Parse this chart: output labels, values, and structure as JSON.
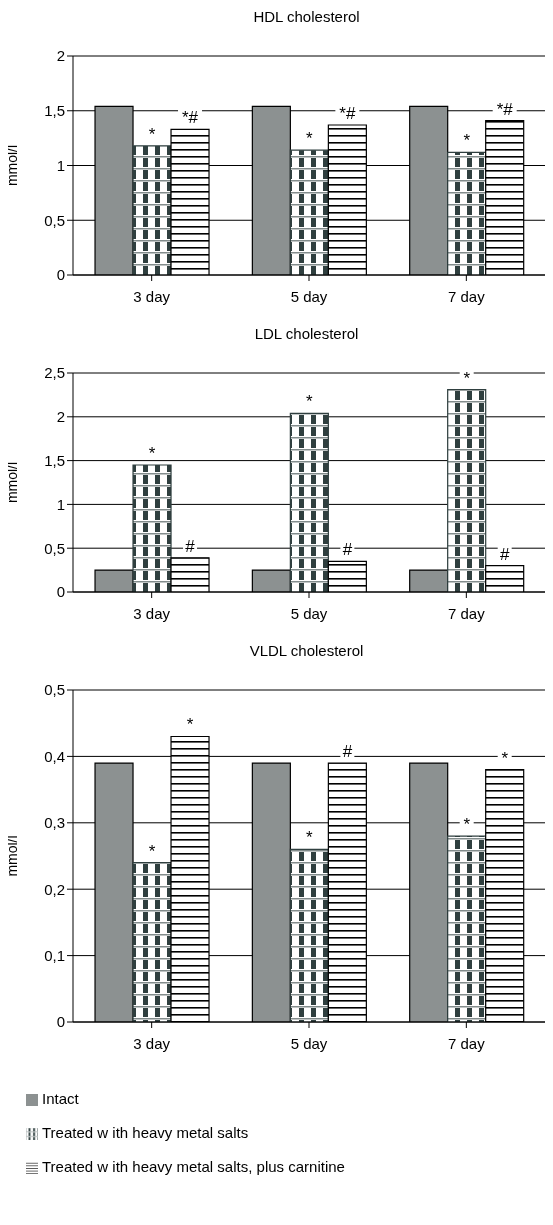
{
  "chart_data": [
    {
      "type": "bar",
      "title": "HDL cholesterol",
      "ylabel": "mmol/l",
      "categories": [
        "3 day",
        "5 day",
        "7 day"
      ],
      "ylim": [
        0,
        2
      ],
      "yticks": [
        0,
        {
          "value": 0.5,
          "label": "0,5"
        },
        1,
        {
          "value": 1.5,
          "label": "1,5"
        },
        2
      ],
      "grid": "y",
      "legend": false,
      "series": [
        {
          "color": "#8c9191",
          "values": [
            1.54,
            1.54,
            1.54
          ]
        },
        {
          "color": "#2f3f3f",
          "values": [
            1.18,
            1.14,
            1.12
          ],
          "value_labels": [
            "*",
            "*",
            "*"
          ]
        },
        {
          "color": "#000000",
          "values": [
            1.33,
            1.37,
            1.41
          ],
          "value_labels": [
            "*#",
            "*#",
            "*#"
          ]
        }
      ]
    },
    {
      "type": "bar",
      "title": "LDL cholesterol",
      "ylabel": "mmol/l",
      "categories": [
        "3 day",
        "5 day",
        "7 day"
      ],
      "ylim": [
        0,
        2.5
      ],
      "yticks": [
        0,
        {
          "value": 0.5,
          "label": "0,5"
        },
        1,
        {
          "value": 1.5,
          "label": "1,5"
        },
        2,
        {
          "value": 2.5,
          "label": "2,5"
        }
      ],
      "grid": "y",
      "legend": false,
      "series": [
        {
          "color": "#8c9191",
          "values": [
            0.25,
            0.25,
            0.25
          ]
        },
        {
          "color": "#2f3f3f",
          "values": [
            1.45,
            2.04,
            2.31
          ],
          "value_labels": [
            "*",
            "*",
            "*"
          ]
        },
        {
          "color": "#000000",
          "values": [
            0.39,
            0.35,
            0.3
          ],
          "value_labels": [
            "#",
            "#",
            "#"
          ]
        }
      ]
    },
    {
      "type": "bar",
      "title": "VLDL cholesterol",
      "ylabel": "mmol/l",
      "categories": [
        "3 day",
        "5 day",
        "7 day"
      ],
      "ylim": [
        0,
        0.5
      ],
      "yticks": [
        0,
        {
          "value": 0.1,
          "label": "0,1"
        },
        {
          "value": 0.2,
          "label": "0,2"
        },
        {
          "value": 0.3,
          "label": "0,3"
        },
        {
          "value": 0.4,
          "label": "0,4"
        },
        {
          "value": 0.5,
          "label": "0,5"
        }
      ],
      "grid": "y",
      "legend": "bottom",
      "series": [
        {
          "name": "Intact",
          "color": "#8c9191",
          "values": [
            0.39,
            0.39,
            0.39
          ]
        },
        {
          "name": "Treated w ith heavy metal salts",
          "color": "#2f3f3f",
          "values": [
            0.24,
            0.26,
            0.28
          ],
          "value_labels": [
            "*",
            "*",
            "*"
          ]
        },
        {
          "name": "Treated w ith heavy metal salts, plus carnitine",
          "color": "#000000",
          "values": [
            0.43,
            0.39,
            0.38
          ],
          "value_labels": [
            "*",
            "#",
            "*"
          ]
        }
      ]
    }
  ]
}
